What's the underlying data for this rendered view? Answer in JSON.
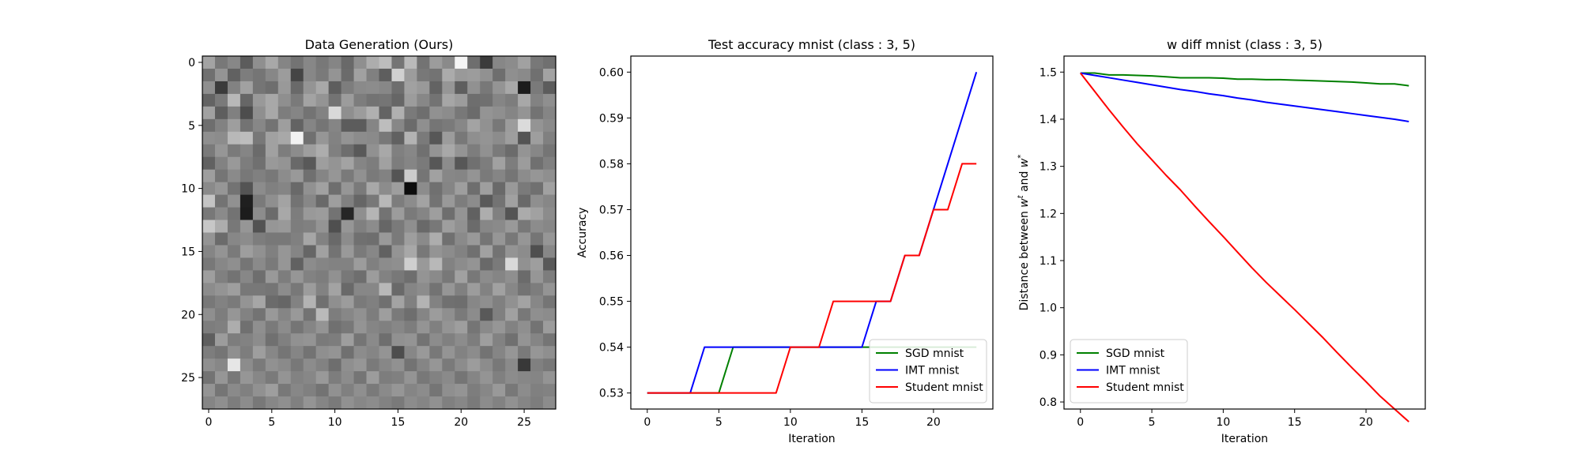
{
  "chart_data": [
    {
      "type": "heatmap",
      "title": "Data Generation (Ours)",
      "xlabel": "",
      "ylabel": "",
      "rows": 28,
      "cols": 28,
      "colormap": "gray",
      "xticks": [
        0,
        5,
        10,
        15,
        20,
        25
      ],
      "yticks": [
        0,
        5,
        10,
        15,
        20,
        25
      ],
      "xlim": [
        -0.5,
        27.5
      ],
      "ylim": [
        27.5,
        -0.5
      ],
      "values": [
        [
          0.64,
          0.47,
          0.53,
          0.36,
          0.56,
          0.66,
          0.52,
          0.45,
          0.53,
          0.47,
          0.52,
          0.41,
          0.56,
          0.68,
          0.74,
          0.46,
          0.73,
          0.45,
          0.61,
          0.54,
          0.96,
          0.43,
          0.23,
          0.53,
          0.55,
          0.63,
          0.47,
          0.44
        ],
        [
          0.44,
          0.58,
          0.38,
          0.49,
          0.46,
          0.53,
          0.61,
          0.27,
          0.53,
          0.48,
          0.58,
          0.42,
          0.63,
          0.5,
          0.37,
          0.82,
          0.61,
          0.47,
          0.45,
          0.67,
          0.6,
          0.61,
          0.57,
          0.43,
          0.56,
          0.54,
          0.44,
          0.64
        ],
        [
          0.56,
          0.23,
          0.51,
          0.63,
          0.46,
          0.43,
          0.6,
          0.41,
          0.58,
          0.66,
          0.37,
          0.49,
          0.54,
          0.55,
          0.53,
          0.43,
          0.63,
          0.6,
          0.39,
          0.59,
          0.37,
          0.57,
          0.47,
          0.58,
          0.66,
          0.11,
          0.48,
          0.36
        ],
        [
          0.39,
          0.48,
          0.72,
          0.4,
          0.6,
          0.66,
          0.56,
          0.48,
          0.64,
          0.58,
          0.45,
          0.61,
          0.49,
          0.45,
          0.46,
          0.4,
          0.61,
          0.53,
          0.45,
          0.65,
          0.61,
          0.43,
          0.44,
          0.52,
          0.49,
          0.66,
          0.51,
          0.56
        ],
        [
          0.63,
          0.37,
          0.5,
          0.3,
          0.56,
          0.66,
          0.49,
          0.52,
          0.45,
          0.51,
          0.85,
          0.56,
          0.61,
          0.69,
          0.39,
          0.69,
          0.48,
          0.43,
          0.57,
          0.55,
          0.47,
          0.42,
          0.58,
          0.56,
          0.52,
          0.58,
          0.45,
          0.52
        ],
        [
          0.43,
          0.51,
          0.62,
          0.45,
          0.53,
          0.45,
          0.62,
          0.39,
          0.52,
          0.46,
          0.52,
          0.36,
          0.36,
          0.52,
          0.74,
          0.53,
          0.42,
          0.56,
          0.46,
          0.48,
          0.53,
          0.64,
          0.57,
          0.47,
          0.61,
          0.86,
          0.58,
          0.54
        ],
        [
          0.56,
          0.55,
          0.72,
          0.74,
          0.47,
          0.63,
          0.66,
          0.95,
          0.44,
          0.59,
          0.51,
          0.58,
          0.55,
          0.54,
          0.47,
          0.38,
          0.7,
          0.48,
          0.34,
          0.61,
          0.47,
          0.56,
          0.58,
          0.55,
          0.62,
          0.33,
          0.62,
          0.5
        ],
        [
          0.48,
          0.59,
          0.48,
          0.52,
          0.42,
          0.63,
          0.49,
          0.55,
          0.62,
          0.68,
          0.5,
          0.43,
          0.35,
          0.57,
          0.66,
          0.5,
          0.53,
          0.44,
          0.58,
          0.66,
          0.58,
          0.49,
          0.57,
          0.48,
          0.42,
          0.58,
          0.53,
          0.46
        ],
        [
          0.38,
          0.51,
          0.6,
          0.49,
          0.44,
          0.6,
          0.58,
          0.41,
          0.35,
          0.62,
          0.58,
          0.64,
          0.52,
          0.49,
          0.63,
          0.49,
          0.52,
          0.48,
          0.34,
          0.55,
          0.34,
          0.44,
          0.49,
          0.63,
          0.49,
          0.61,
          0.44,
          0.5
        ],
        [
          0.62,
          0.46,
          0.54,
          0.47,
          0.5,
          0.47,
          0.55,
          0.6,
          0.44,
          0.52,
          0.59,
          0.48,
          0.57,
          0.48,
          0.51,
          0.33,
          0.8,
          0.46,
          0.63,
          0.53,
          0.52,
          0.58,
          0.48,
          0.52,
          0.46,
          0.55,
          0.59,
          0.56
        ],
        [
          0.54,
          0.59,
          0.45,
          0.33,
          0.55,
          0.5,
          0.52,
          0.41,
          0.57,
          0.63,
          0.43,
          0.59,
          0.48,
          0.66,
          0.55,
          0.62,
          0.05,
          0.55,
          0.44,
          0.52,
          0.62,
          0.43,
          0.62,
          0.41,
          0.6,
          0.48,
          0.44,
          0.63
        ],
        [
          0.77,
          0.45,
          0.57,
          0.12,
          0.48,
          0.56,
          0.64,
          0.45,
          0.53,
          0.41,
          0.62,
          0.5,
          0.4,
          0.47,
          0.72,
          0.49,
          0.55,
          0.64,
          0.45,
          0.6,
          0.49,
          0.55,
          0.35,
          0.45,
          0.63,
          0.41,
          0.56,
          0.53
        ],
        [
          0.47,
          0.54,
          0.45,
          0.11,
          0.55,
          0.42,
          0.66,
          0.49,
          0.6,
          0.61,
          0.45,
          0.15,
          0.56,
          0.71,
          0.45,
          0.61,
          0.48,
          0.52,
          0.62,
          0.43,
          0.58,
          0.38,
          0.68,
          0.5,
          0.33,
          0.67,
          0.63,
          0.55
        ],
        [
          0.78,
          0.68,
          0.47,
          0.59,
          0.32,
          0.59,
          0.6,
          0.49,
          0.5,
          0.58,
          0.31,
          0.59,
          0.5,
          0.55,
          0.4,
          0.48,
          0.56,
          0.41,
          0.47,
          0.62,
          0.57,
          0.42,
          0.53,
          0.54,
          0.6,
          0.47,
          0.55,
          0.53
        ],
        [
          0.58,
          0.42,
          0.53,
          0.55,
          0.49,
          0.47,
          0.47,
          0.5,
          0.65,
          0.51,
          0.41,
          0.55,
          0.44,
          0.43,
          0.6,
          0.48,
          0.62,
          0.54,
          0.68,
          0.44,
          0.54,
          0.6,
          0.46,
          0.59,
          0.47,
          0.59,
          0.46,
          0.59
        ],
        [
          0.52,
          0.58,
          0.48,
          0.62,
          0.57,
          0.5,
          0.59,
          0.52,
          0.4,
          0.63,
          0.45,
          0.6,
          0.48,
          0.53,
          0.38,
          0.58,
          0.66,
          0.47,
          0.58,
          0.55,
          0.51,
          0.44,
          0.63,
          0.45,
          0.58,
          0.55,
          0.31,
          0.53
        ],
        [
          0.47,
          0.53,
          0.56,
          0.46,
          0.54,
          0.48,
          0.59,
          0.38,
          0.55,
          0.52,
          0.51,
          0.51,
          0.61,
          0.5,
          0.55,
          0.56,
          0.81,
          0.6,
          0.72,
          0.51,
          0.55,
          0.58,
          0.41,
          0.48,
          0.85,
          0.57,
          0.62,
          0.35
        ],
        [
          0.62,
          0.5,
          0.45,
          0.53,
          0.43,
          0.6,
          0.49,
          0.59,
          0.51,
          0.49,
          0.57,
          0.47,
          0.43,
          0.61,
          0.51,
          0.47,
          0.43,
          0.58,
          0.54,
          0.47,
          0.63,
          0.47,
          0.55,
          0.52,
          0.56,
          0.42,
          0.59,
          0.49
        ],
        [
          0.55,
          0.58,
          0.62,
          0.47,
          0.47,
          0.46,
          0.55,
          0.47,
          0.61,
          0.51,
          0.64,
          0.41,
          0.53,
          0.53,
          0.72,
          0.41,
          0.52,
          0.55,
          0.45,
          0.59,
          0.5,
          0.61,
          0.51,
          0.63,
          0.53,
          0.45,
          0.49,
          0.58
        ],
        [
          0.47,
          0.51,
          0.48,
          0.58,
          0.65,
          0.42,
          0.4,
          0.51,
          0.7,
          0.44,
          0.56,
          0.61,
          0.48,
          0.5,
          0.44,
          0.64,
          0.5,
          0.7,
          0.51,
          0.44,
          0.43,
          0.53,
          0.56,
          0.5,
          0.57,
          0.64,
          0.53,
          0.46
        ],
        [
          0.56,
          0.49,
          0.59,
          0.51,
          0.45,
          0.6,
          0.52,
          0.6,
          0.45,
          0.73,
          0.49,
          0.53,
          0.57,
          0.49,
          0.62,
          0.48,
          0.43,
          0.52,
          0.61,
          0.56,
          0.48,
          0.55,
          0.35,
          0.5,
          0.63,
          0.47,
          0.56,
          0.55
        ],
        [
          0.49,
          0.5,
          0.68,
          0.44,
          0.56,
          0.48,
          0.55,
          0.46,
          0.52,
          0.58,
          0.44,
          0.47,
          0.58,
          0.52,
          0.5,
          0.53,
          0.49,
          0.58,
          0.5,
          0.58,
          0.62,
          0.46,
          0.54,
          0.59,
          0.51,
          0.56,
          0.45,
          0.61
        ],
        [
          0.37,
          0.61,
          0.49,
          0.51,
          0.55,
          0.44,
          0.5,
          0.57,
          0.58,
          0.48,
          0.49,
          0.62,
          0.46,
          0.54,
          0.43,
          0.57,
          0.58,
          0.45,
          0.55,
          0.5,
          0.55,
          0.49,
          0.62,
          0.51,
          0.44,
          0.58,
          0.52,
          0.46
        ],
        [
          0.49,
          0.46,
          0.56,
          0.49,
          0.62,
          0.53,
          0.46,
          0.52,
          0.45,
          0.56,
          0.58,
          0.44,
          0.55,
          0.52,
          0.58,
          0.3,
          0.53,
          0.6,
          0.47,
          0.58,
          0.51,
          0.55,
          0.45,
          0.52,
          0.59,
          0.48,
          0.59,
          0.56
        ],
        [
          0.56,
          0.53,
          0.9,
          0.55,
          0.48,
          0.57,
          0.54,
          0.47,
          0.55,
          0.51,
          0.43,
          0.56,
          0.59,
          0.48,
          0.53,
          0.57,
          0.45,
          0.52,
          0.59,
          0.48,
          0.55,
          0.61,
          0.55,
          0.47,
          0.54,
          0.22,
          0.5,
          0.47
        ],
        [
          0.45,
          0.59,
          0.47,
          0.59,
          0.53,
          0.48,
          0.58,
          0.51,
          0.53,
          0.6,
          0.49,
          0.55,
          0.46,
          0.61,
          0.49,
          0.5,
          0.58,
          0.47,
          0.51,
          0.54,
          0.46,
          0.52,
          0.58,
          0.5,
          0.55,
          0.53,
          0.52,
          0.58
        ],
        [
          0.58,
          0.46,
          0.54,
          0.5,
          0.57,
          0.62,
          0.47,
          0.53,
          0.5,
          0.45,
          0.57,
          0.5,
          0.56,
          0.48,
          0.54,
          0.59,
          0.52,
          0.55,
          0.46,
          0.56,
          0.58,
          0.49,
          0.53,
          0.6,
          0.47,
          0.55,
          0.5,
          0.51
        ],
        [
          0.52,
          0.56,
          0.49,
          0.55,
          0.47,
          0.53,
          0.56,
          0.5,
          0.58,
          0.52,
          0.48,
          0.57,
          0.53,
          0.55,
          0.51,
          0.48,
          0.55,
          0.52,
          0.57,
          0.5,
          0.53,
          0.48,
          0.55,
          0.51,
          0.57,
          0.52,
          0.49,
          0.55
        ]
      ]
    },
    {
      "type": "line",
      "title": "Test accuracy mnist (class : 3, 5)",
      "xlabel": "Iteration",
      "ylabel": "Accuracy",
      "xlim": [
        -1.15,
        24.15
      ],
      "ylim": [
        0.5265,
        0.6035
      ],
      "xticks": [
        0,
        5,
        10,
        15,
        20
      ],
      "yticks": [
        0.53,
        0.54,
        0.55,
        0.56,
        0.57,
        0.58,
        0.59,
        0.6
      ],
      "ytick_labels": [
        "0.53",
        "0.54",
        "0.55",
        "0.56",
        "0.57",
        "0.58",
        "0.59",
        "0.60"
      ],
      "legend": "lower-right",
      "x": [
        0,
        1,
        2,
        3,
        4,
        5,
        6,
        7,
        8,
        9,
        10,
        11,
        12,
        13,
        14,
        15,
        16,
        17,
        18,
        19,
        20,
        21,
        22,
        23
      ],
      "series": [
        {
          "name": "SGD mnist",
          "color": "#008000",
          "values": [
            0.53,
            0.53,
            0.53,
            0.53,
            0.53,
            0.53,
            0.54,
            0.54,
            0.54,
            0.54,
            0.54,
            0.54,
            0.54,
            0.54,
            0.54,
            0.54,
            0.54,
            0.54,
            0.54,
            0.54,
            0.54,
            0.54,
            0.54,
            0.54
          ]
        },
        {
          "name": "IMT mnist",
          "color": "#0000ff",
          "values": [
            0.53,
            0.53,
            0.53,
            0.53,
            0.54,
            0.54,
            0.54,
            0.54,
            0.54,
            0.54,
            0.54,
            0.54,
            0.54,
            0.54,
            0.54,
            0.54,
            0.55,
            0.55,
            0.56,
            0.56,
            0.57,
            0.58,
            0.59,
            0.6
          ]
        },
        {
          "name": "Student mnist",
          "color": "#ff0000",
          "values": [
            0.53,
            0.53,
            0.53,
            0.53,
            0.53,
            0.53,
            0.53,
            0.53,
            0.53,
            0.53,
            0.54,
            0.54,
            0.54,
            0.55,
            0.55,
            0.55,
            0.55,
            0.55,
            0.56,
            0.56,
            0.57,
            0.57,
            0.58,
            0.58
          ]
        }
      ]
    },
    {
      "type": "line",
      "title": "w diff mnist (class : 3, 5)",
      "xlabel": "Iteration",
      "ylabel": "Distance between wᵗ and w*",
      "ylabel_parts": {
        "prefix": "Distance between ",
        "w": "w",
        "t": "t",
        "and": " and ",
        "star": "*"
      },
      "xlim": [
        -1.15,
        24.15
      ],
      "ylim": [
        0.785,
        1.534
      ],
      "xticks": [
        0,
        5,
        10,
        15,
        20
      ],
      "yticks": [
        0.8,
        0.9,
        1.0,
        1.1,
        1.2,
        1.3,
        1.4,
        1.5
      ],
      "ytick_labels": [
        "0.8",
        "0.9",
        "1.0",
        "1.1",
        "1.2",
        "1.3",
        "1.4",
        "1.5"
      ],
      "legend": "lower-left",
      "x": [
        0,
        1,
        2,
        3,
        4,
        5,
        6,
        7,
        8,
        9,
        10,
        11,
        12,
        13,
        14,
        15,
        16,
        17,
        18,
        19,
        20,
        21,
        22,
        23
      ],
      "series": [
        {
          "name": "SGD mnist",
          "color": "#008000",
          "values": [
            1.498,
            1.498,
            1.494,
            1.494,
            1.493,
            1.492,
            1.49,
            1.488,
            1.488,
            1.488,
            1.487,
            1.485,
            1.485,
            1.484,
            1.484,
            1.483,
            1.482,
            1.481,
            1.48,
            1.479,
            1.477,
            1.475,
            1.475,
            1.471
          ]
        },
        {
          "name": "IMT mnist",
          "color": "#0000ff",
          "values": [
            1.498,
            1.493,
            1.488,
            1.483,
            1.478,
            1.473,
            1.468,
            1.463,
            1.459,
            1.454,
            1.45,
            1.445,
            1.441,
            1.436,
            1.432,
            1.428,
            1.424,
            1.42,
            1.416,
            1.412,
            1.408,
            1.404,
            1.4,
            1.395
          ]
        },
        {
          "name": "Student mnist",
          "color": "#ff0000",
          "values": [
            1.498,
            1.459,
            1.42,
            1.383,
            1.347,
            1.314,
            1.281,
            1.25,
            1.216,
            1.183,
            1.151,
            1.118,
            1.085,
            1.054,
            1.025,
            0.996,
            0.966,
            0.936,
            0.904,
            0.873,
            0.843,
            0.812,
            0.785,
            0.758
          ]
        }
      ]
    }
  ]
}
